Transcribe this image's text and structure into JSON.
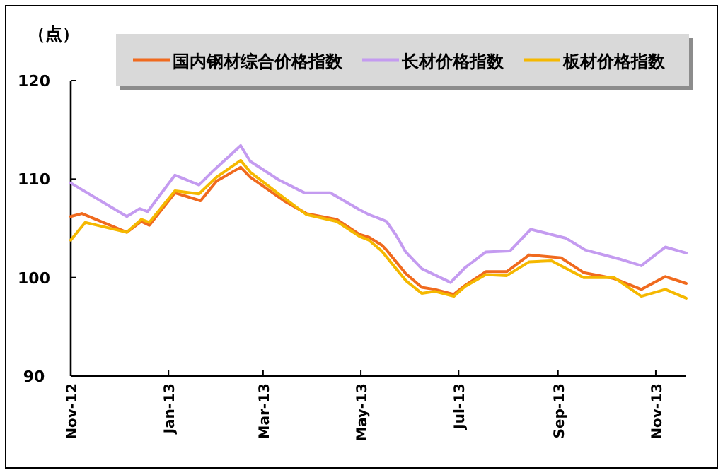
{
  "chart_data": {
    "type": "line",
    "ylabel": "（点）",
    "xlim": [
      "2012-11-01",
      "2013-11-20"
    ],
    "ylim": [
      90,
      120
    ],
    "yticks": [
      90,
      100,
      110,
      120
    ],
    "xticks": [
      {
        "value": "2012-11-01",
        "label": "Nov-12"
      },
      {
        "value": "2013-01-01",
        "label": "Jan-13"
      },
      {
        "value": "2013-03-01",
        "label": "Mar-13"
      },
      {
        "value": "2013-05-01",
        "label": "May-13"
      },
      {
        "value": "2013-07-01",
        "label": "Jul-13"
      },
      {
        "value": "2013-09-01",
        "label": "Sep-13"
      },
      {
        "value": "2013-11-01",
        "label": "Nov-13"
      }
    ],
    "grid": false,
    "legend": "top",
    "marker": "none",
    "line_style": "solid",
    "series": [
      {
        "name": "国内钢材综合价格指数",
        "color": "#f06a1e",
        "x": [
          "2012-11-01",
          "2012-11-08",
          "2012-12-06",
          "2012-12-15",
          "2012-12-20",
          "2013-01-05",
          "2013-01-21",
          "2013-01-31",
          "2013-02-15",
          "2013-02-21",
          "2013-03-14",
          "2013-03-28",
          "2013-04-16",
          "2013-04-30",
          "2013-05-06",
          "2013-05-14",
          "2013-05-17",
          "2013-05-23",
          "2013-05-29",
          "2013-06-08",
          "2013-06-16",
          "2013-06-28",
          "2013-07-05",
          "2013-07-18",
          "2013-07-31",
          "2013-08-14",
          "2013-09-03",
          "2013-09-17",
          "2013-10-06",
          "2013-10-23",
          "2013-11-07",
          "2013-11-20"
        ],
        "values": [
          106.2,
          106.5,
          104.6,
          105.7,
          105.3,
          108.6,
          107.8,
          109.8,
          111.2,
          110.2,
          107.8,
          106.5,
          105.9,
          104.4,
          104.1,
          103.3,
          102.8,
          101.6,
          100.4,
          99.0,
          98.8,
          98.3,
          99.2,
          100.6,
          100.6,
          102.3,
          102.0,
          100.5,
          99.9,
          98.8,
          100.1,
          99.4
        ]
      },
      {
        "name": "长材价格指数",
        "color": "#c49bf0",
        "x": [
          "2012-11-01",
          "2012-12-06",
          "2012-12-14",
          "2012-12-19",
          "2013-01-05",
          "2013-01-20",
          "2013-01-28",
          "2013-02-15",
          "2013-02-21",
          "2013-03-11",
          "2013-03-27",
          "2013-04-12",
          "2013-04-30",
          "2013-05-06",
          "2013-05-14",
          "2013-05-17",
          "2013-05-23",
          "2013-05-29",
          "2013-06-08",
          "2013-06-26",
          "2013-07-05",
          "2013-07-18",
          "2013-08-02",
          "2013-08-15",
          "2013-09-06",
          "2013-09-18",
          "2013-10-09",
          "2013-10-23",
          "2013-11-07",
          "2013-11-20"
        ],
        "values": [
          109.6,
          106.2,
          107.0,
          106.7,
          110.4,
          109.4,
          110.7,
          113.4,
          111.8,
          109.9,
          108.6,
          108.6,
          106.9,
          106.4,
          105.9,
          105.7,
          104.3,
          102.6,
          100.9,
          99.5,
          101.0,
          102.6,
          102.7,
          104.9,
          104.0,
          102.8,
          101.9,
          101.2,
          103.1,
          102.5
        ]
      },
      {
        "name": "板材价格指数",
        "color": "#f5b800",
        "x": [
          "2012-11-01",
          "2012-11-10",
          "2012-12-06",
          "2012-12-15",
          "2012-12-20",
          "2013-01-05",
          "2013-01-20",
          "2013-01-31",
          "2013-02-15",
          "2013-02-21",
          "2013-03-14",
          "2013-03-28",
          "2013-04-16",
          "2013-04-30",
          "2013-05-06",
          "2013-05-14",
          "2013-05-17",
          "2013-05-23",
          "2013-05-29",
          "2013-06-08",
          "2013-06-16",
          "2013-06-28",
          "2013-07-05",
          "2013-07-18",
          "2013-07-31",
          "2013-08-14",
          "2013-08-28",
          "2013-09-17",
          "2013-10-06",
          "2013-10-23",
          "2013-11-07",
          "2013-11-20"
        ],
        "values": [
          103.8,
          105.6,
          104.6,
          105.9,
          105.6,
          108.8,
          108.5,
          110.2,
          111.9,
          110.7,
          108.1,
          106.4,
          105.7,
          104.2,
          103.8,
          102.7,
          102.1,
          100.9,
          99.7,
          98.4,
          98.6,
          98.1,
          99.1,
          100.3,
          100.2,
          101.6,
          101.7,
          100.0,
          100.0,
          98.1,
          98.8,
          97.9
        ]
      }
    ]
  }
}
